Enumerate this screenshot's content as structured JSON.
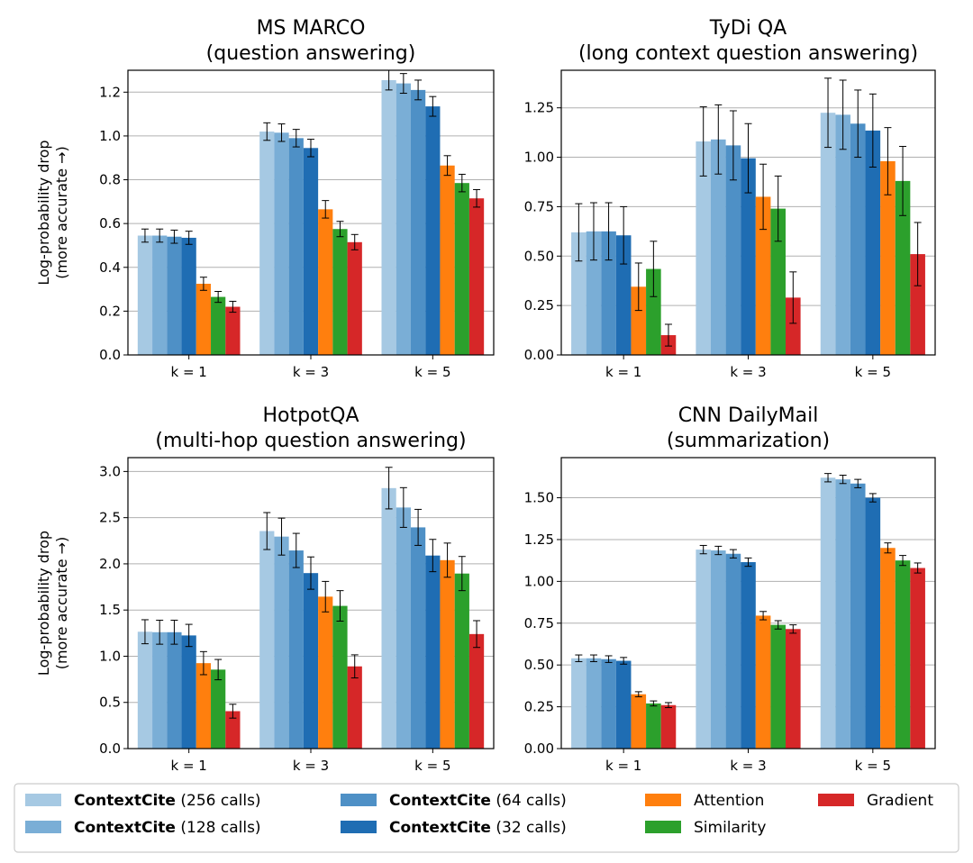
{
  "chart_data": [
    {
      "type": "bar",
      "title": "MS MARCO",
      "subtitle": "(question answering)",
      "ylabel_line1": "Log-probability drop",
      "ylabel_line2": "(more accurate →)",
      "categories": [
        "k = 1",
        "k = 3",
        "k = 5"
      ],
      "ylim": [
        0,
        1.3
      ],
      "yticks": [
        0.0,
        0.2,
        0.4,
        0.6,
        0.8,
        1.0,
        1.2
      ],
      "ytick_labels": [
        "0.0",
        "0.2",
        "0.4",
        "0.6",
        "0.8",
        "1.0",
        "1.2"
      ],
      "grid": "horizontal",
      "series": [
        {
          "name": "ContextCite (256 calls)",
          "values": [
            0.545,
            1.02,
            1.255
          ],
          "errors": [
            0.03,
            0.04,
            0.045
          ]
        },
        {
          "name": "ContextCite (128 calls)",
          "values": [
            0.545,
            1.015,
            1.24
          ],
          "errors": [
            0.03,
            0.04,
            0.045
          ]
        },
        {
          "name": "ContextCite (64 calls)",
          "values": [
            0.54,
            0.99,
            1.21
          ],
          "errors": [
            0.03,
            0.04,
            0.045
          ]
        },
        {
          "name": "ContextCite (32 calls)",
          "values": [
            0.535,
            0.945,
            1.135
          ],
          "errors": [
            0.03,
            0.04,
            0.045
          ]
        },
        {
          "name": "Attention",
          "values": [
            0.325,
            0.665,
            0.865
          ],
          "errors": [
            0.03,
            0.04,
            0.045
          ]
        },
        {
          "name": "Similarity",
          "values": [
            0.265,
            0.575,
            0.785
          ],
          "errors": [
            0.025,
            0.035,
            0.04
          ]
        },
        {
          "name": "Gradient",
          "values": [
            0.22,
            0.515,
            0.715
          ],
          "errors": [
            0.025,
            0.035,
            0.04
          ]
        }
      ]
    },
    {
      "type": "bar",
      "title": "TyDi QA",
      "subtitle": "(long context question answering)",
      "ylabel_line1": "",
      "ylabel_line2": "",
      "categories": [
        "k = 1",
        "k = 3",
        "k = 5"
      ],
      "ylim": [
        0,
        1.44
      ],
      "yticks": [
        0.0,
        0.25,
        0.5,
        0.75,
        1.0,
        1.25
      ],
      "ytick_labels": [
        "0.00",
        "0.25",
        "0.50",
        "0.75",
        "1.00",
        "1.25"
      ],
      "grid": "horizontal",
      "series": [
        {
          "name": "ContextCite (256 calls)",
          "values": [
            0.62,
            1.08,
            1.225
          ],
          "errors": [
            0.145,
            0.175,
            0.175
          ]
        },
        {
          "name": "ContextCite (128 calls)",
          "values": [
            0.625,
            1.09,
            1.215
          ],
          "errors": [
            0.145,
            0.175,
            0.175
          ]
        },
        {
          "name": "ContextCite (64 calls)",
          "values": [
            0.625,
            1.06,
            1.17
          ],
          "errors": [
            0.145,
            0.175,
            0.17
          ]
        },
        {
          "name": "ContextCite (32 calls)",
          "values": [
            0.605,
            0.995,
            1.135
          ],
          "errors": [
            0.145,
            0.175,
            0.185
          ]
        },
        {
          "name": "Attention",
          "values": [
            0.345,
            0.8,
            0.98
          ],
          "errors": [
            0.12,
            0.165,
            0.17
          ]
        },
        {
          "name": "Similarity",
          "values": [
            0.435,
            0.74,
            0.88
          ],
          "errors": [
            0.14,
            0.165,
            0.175
          ]
        },
        {
          "name": "Gradient",
          "values": [
            0.1,
            0.29,
            0.51
          ],
          "errors": [
            0.055,
            0.13,
            0.16
          ]
        }
      ]
    },
    {
      "type": "bar",
      "title": "HotpotQA",
      "subtitle": "(multi-hop question answering)",
      "ylabel_line1": "Log-probability drop",
      "ylabel_line2": "(more accurate →)",
      "categories": [
        "k = 1",
        "k = 3",
        "k = 5"
      ],
      "ylim": [
        0,
        3.15
      ],
      "yticks": [
        0.0,
        0.5,
        1.0,
        1.5,
        2.0,
        2.5,
        3.0
      ],
      "ytick_labels": [
        "0.0",
        "0.5",
        "1.0",
        "1.5",
        "2.0",
        "2.5",
        "3.0"
      ],
      "grid": "horizontal",
      "series": [
        {
          "name": "ContextCite (256 calls)",
          "values": [
            1.265,
            2.355,
            2.82
          ],
          "errors": [
            0.13,
            0.2,
            0.225
          ]
        },
        {
          "name": "ContextCite (128 calls)",
          "values": [
            1.26,
            2.295,
            2.61
          ],
          "errors": [
            0.13,
            0.2,
            0.215
          ]
        },
        {
          "name": "ContextCite (64 calls)",
          "values": [
            1.26,
            2.145,
            2.395
          ],
          "errors": [
            0.13,
            0.185,
            0.195
          ]
        },
        {
          "name": "ContextCite (32 calls)",
          "values": [
            1.225,
            1.9,
            2.09
          ],
          "errors": [
            0.12,
            0.175,
            0.175
          ]
        },
        {
          "name": "Attention",
          "values": [
            0.925,
            1.645,
            2.04
          ],
          "errors": [
            0.125,
            0.165,
            0.185
          ]
        },
        {
          "name": "Similarity",
          "values": [
            0.855,
            1.545,
            1.895
          ],
          "errors": [
            0.11,
            0.165,
            0.185
          ]
        },
        {
          "name": "Gradient",
          "values": [
            0.405,
            0.89,
            1.24
          ],
          "errors": [
            0.075,
            0.125,
            0.145
          ]
        }
      ]
    },
    {
      "type": "bar",
      "title": "CNN DailyMail",
      "subtitle": "(summarization)",
      "ylabel_line1": "",
      "ylabel_line2": "",
      "categories": [
        "k = 1",
        "k = 3",
        "k = 5"
      ],
      "ylim": [
        0,
        1.74
      ],
      "yticks": [
        0.0,
        0.25,
        0.5,
        0.75,
        1.0,
        1.25,
        1.5
      ],
      "ytick_labels": [
        "0.00",
        "0.25",
        "0.50",
        "0.75",
        "1.00",
        "1.25",
        "1.50"
      ],
      "grid": "horizontal",
      "series": [
        {
          "name": "ContextCite (256 calls)",
          "values": [
            0.54,
            1.19,
            1.62
          ],
          "errors": [
            0.02,
            0.025,
            0.025
          ]
        },
        {
          "name": "ContextCite (128 calls)",
          "values": [
            0.54,
            1.185,
            1.61
          ],
          "errors": [
            0.02,
            0.025,
            0.025
          ]
        },
        {
          "name": "ContextCite (64 calls)",
          "values": [
            0.535,
            1.165,
            1.585
          ],
          "errors": [
            0.02,
            0.025,
            0.025
          ]
        },
        {
          "name": "ContextCite (32 calls)",
          "values": [
            0.525,
            1.115,
            1.5
          ],
          "errors": [
            0.02,
            0.025,
            0.025
          ]
        },
        {
          "name": "Attention",
          "values": [
            0.325,
            0.795,
            1.2
          ],
          "errors": [
            0.015,
            0.025,
            0.03
          ]
        },
        {
          "name": "Similarity",
          "values": [
            0.27,
            0.74,
            1.125
          ],
          "errors": [
            0.015,
            0.025,
            0.03
          ]
        },
        {
          "name": "Gradient",
          "values": [
            0.26,
            0.715,
            1.08
          ],
          "errors": [
            0.015,
            0.025,
            0.03
          ]
        }
      ]
    }
  ],
  "series_colors": [
    "#a6c9e3",
    "#7aaed6",
    "#4e90c6",
    "#1f6db3",
    "#ff7f0e",
    "#2ca02c",
    "#d62728"
  ],
  "legend": {
    "placement": "bottom",
    "entries": [
      {
        "bold": "ContextCite",
        "rest": " (256 calls)"
      },
      {
        "bold": "ContextCite",
        "rest": " (128 calls)"
      },
      {
        "bold": "ContextCite",
        "rest": " (64 calls)"
      },
      {
        "bold": "ContextCite",
        "rest": " (32 calls)"
      },
      {
        "bold": "",
        "rest": "Attention"
      },
      {
        "bold": "",
        "rest": "Similarity"
      },
      {
        "bold": "",
        "rest": "Gradient"
      }
    ]
  }
}
